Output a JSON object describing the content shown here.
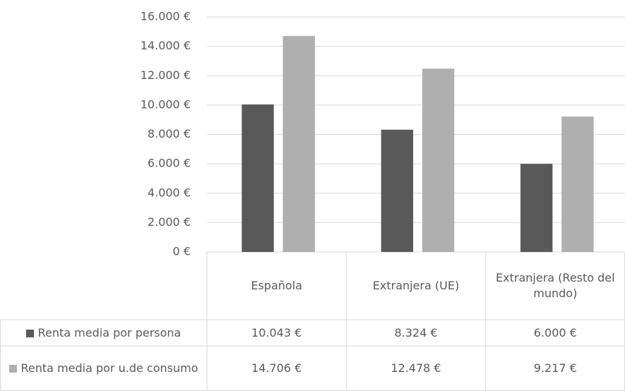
{
  "chart_data": {
    "type": "bar",
    "categories": [
      "Española",
      "Extranjera (UE)",
      "Extranjera (Resto del mundo)"
    ],
    "series": [
      {
        "name": "Renta media por persona",
        "color": "#595959",
        "values": [
          10043,
          8324,
          6000
        ],
        "value_labels": [
          "10.043 €",
          "8.324 €",
          "6.000 €"
        ]
      },
      {
        "name": "Renta media por u.de consumo",
        "color": "#afafaf",
        "values": [
          14706,
          12478,
          9217
        ],
        "value_labels": [
          "14.706 €",
          "12.478 €",
          "9.217 €"
        ]
      }
    ],
    "ylim": [
      0,
      16000
    ],
    "yticks": [
      {
        "value": 0,
        "label": "0 €"
      },
      {
        "value": 2000,
        "label": "2.000 €"
      },
      {
        "value": 4000,
        "label": "4.000 €"
      },
      {
        "value": 6000,
        "label": "6.000 €"
      },
      {
        "value": 8000,
        "label": "8.000 €"
      },
      {
        "value": 10000,
        "label": "10.000 €"
      },
      {
        "value": 12000,
        "label": "12.000 €"
      },
      {
        "value": 14000,
        "label": "14.000 €"
      },
      {
        "value": 16000,
        "label": "16.000 €"
      }
    ],
    "grid": true
  }
}
